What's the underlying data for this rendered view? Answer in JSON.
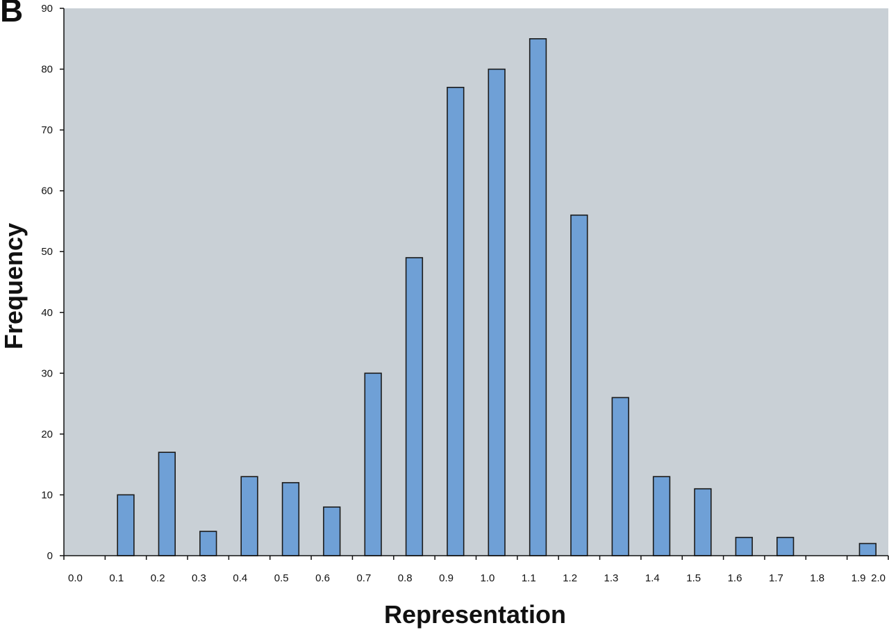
{
  "panel_label": "B",
  "colors": {
    "plot_background": "#c9d0d6",
    "bar_fill": "#6fa0d6",
    "bar_stroke": "#1a1a1a",
    "axis": "#111111"
  },
  "chart_data": {
    "type": "bar",
    "title": "",
    "xlabel": "Representation",
    "ylabel": "Frequency",
    "xlim": [
      0.0,
      2.0
    ],
    "ylim": [
      0,
      90
    ],
    "x_ticks": [
      "0.0",
      "0.1",
      "0.2",
      "0.3",
      "0.4",
      "0.5",
      "0.6",
      "0.7",
      "0.8",
      "0.9",
      "1.0",
      "1.1",
      "1.2",
      "1.3",
      "1.4",
      "1.5",
      "1.6",
      "1.7",
      "1.8",
      "1.9",
      "2.0"
    ],
    "y_ticks": [
      "0",
      "10",
      "20",
      "30",
      "40",
      "50",
      "60",
      "70",
      "80",
      "90"
    ],
    "grid": false,
    "legend": "none",
    "categories": [
      "0.1-0.2",
      "0.2-0.3",
      "0.3-0.4",
      "0.4-0.5",
      "0.5-0.6",
      "0.6-0.7",
      "0.7-0.8",
      "0.8-0.9",
      "0.9-1.0",
      "1.0-1.1",
      "1.1-1.2",
      "1.2-1.3",
      "1.3-1.4",
      "1.4-1.5",
      "1.5-1.6",
      "1.6-1.7",
      "1.7-1.8",
      "1.8-1.9",
      "1.9-2.0"
    ],
    "bin_start": [
      0.1,
      0.2,
      0.3,
      0.4,
      0.5,
      0.6,
      0.7,
      0.8,
      0.9,
      1.0,
      1.1,
      1.2,
      1.3,
      1.4,
      1.5,
      1.6,
      1.7,
      1.8,
      1.9
    ],
    "values": [
      10,
      17,
      4,
      13,
      12,
      8,
      30,
      49,
      77,
      80,
      85,
      56,
      26,
      13,
      11,
      3,
      3,
      0,
      2
    ]
  }
}
